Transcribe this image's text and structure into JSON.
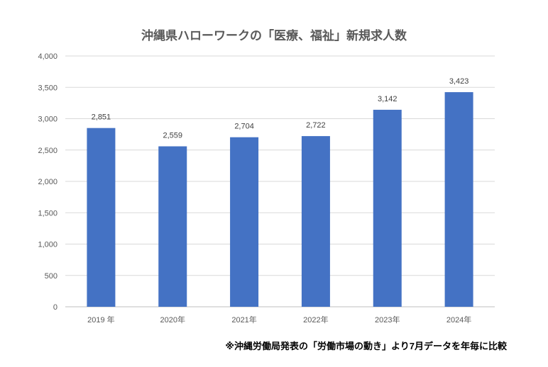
{
  "chart_data": {
    "type": "bar",
    "title": "沖縄県ハローワークの「医療、福祉」新規求人数",
    "categories": [
      "2019 年",
      "2020年",
      "2021年",
      "2022年",
      "2023年",
      "2024年"
    ],
    "values": [
      2851,
      2559,
      2704,
      2722,
      3142,
      3423
    ],
    "value_labels": [
      "2,851",
      "2,559",
      "2,704",
      "2,722",
      "3,142",
      "3,423"
    ],
    "ylim": [
      0,
      4000
    ],
    "yticks": [
      0,
      500,
      1000,
      1500,
      2000,
      2500,
      3000,
      3500,
      4000
    ],
    "ytick_labels": [
      "0",
      "500",
      "1,000",
      "1,500",
      "2,000",
      "2,500",
      "3,000",
      "3,500",
      "4,000"
    ],
    "xlabel": "",
    "ylabel": "",
    "grid": true,
    "bar_color": "#4472C4"
  },
  "note": "※沖縄労働局発表の「労働市場の動き」より7月データを年毎に比較"
}
